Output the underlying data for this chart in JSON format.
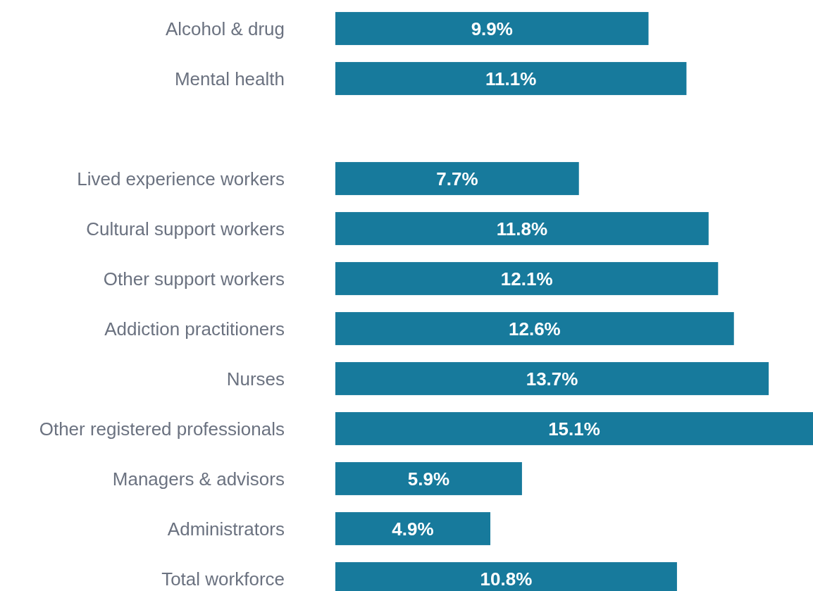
{
  "chart_data": {
    "type": "bar",
    "orientation": "horizontal",
    "color": "#177a9c",
    "categories": [
      "Alcohol & drug",
      "Mental health",
      null,
      "Lived experience workers",
      "Cultural support workers",
      "Other support workers",
      "Addiction practitioners",
      "Nurses",
      "Other registered professionals",
      "Managers & advisors",
      "Administrators",
      "Total workforce"
    ],
    "values": [
      9.9,
      11.1,
      null,
      7.7,
      11.8,
      12.1,
      12.6,
      13.7,
      15.1,
      5.9,
      4.9,
      10.8
    ],
    "value_labels": [
      "9.9%",
      "11.1%",
      null,
      "7.7%",
      "11.8%",
      "12.1%",
      "12.6%",
      "13.7%",
      "15.1%",
      "5.9%",
      "4.9%",
      "10.8%"
    ]
  }
}
